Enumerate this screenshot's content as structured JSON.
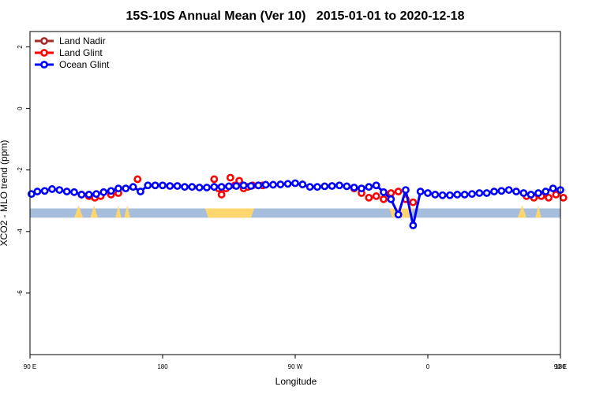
{
  "chart_data": {
    "type": "line",
    "title": "15S-10S Annual Mean (Ver 10)   2015-01-01 to 2020-12-18",
    "xlabel": "Longitude",
    "ylabel": "XCO2 - MLO trend (ppm)",
    "xlim": [
      90,
      450
    ],
    "ylim": [
      -8,
      2.5
    ],
    "x_ticks": [
      90,
      180,
      270,
      360,
      450
    ],
    "x_tick_labels": [
      "90 E",
      "180",
      "90 W",
      "0",
      "90 E",
      "180"
    ],
    "x_tick_values": [
      90,
      180,
      270,
      360,
      450,
      540
    ],
    "y_ticks": [
      2,
      0,
      -2,
      -4,
      -6
    ],
    "y_tick_labels": [
      "2",
      "0",
      "-2",
      "-4",
      "-6"
    ],
    "legend_position": "top-left",
    "series": [
      {
        "name": "Land Nadir",
        "color": "#a52a2a",
        "x": [],
        "y": []
      },
      {
        "name": "Land Glint",
        "color": "#ff0000",
        "x": [
          125,
          130,
          134,
          138,
          145,
          150,
          163,
          215,
          218,
          220,
          223,
          226,
          229,
          232,
          235,
          238,
          241,
          245,
          248,
          310,
          315,
          320,
          325,
          330,
          335,
          340,
          345,
          350,
          427,
          432,
          437,
          442,
          447,
          452
        ],
        "y": [
          -2.8,
          -2.85,
          -2.9,
          -2.85,
          -2.8,
          -2.75,
          -2.3,
          -2.3,
          -2.6,
          -2.8,
          -2.6,
          -2.25,
          -2.5,
          -2.35,
          -2.6,
          -2.55,
          -2.5,
          -2.5,
          -2.5,
          -2.6,
          -2.75,
          -2.9,
          -2.85,
          -2.95,
          -2.75,
          -2.7,
          -2.95,
          -3.05,
          -2.85,
          -2.9,
          -2.85,
          -2.9,
          -2.8,
          -2.9
        ],
        "line": false
      },
      {
        "name": "Ocean Glint",
        "color": "#0000ff",
        "x": [
          91,
          95,
          100,
          105,
          110,
          115,
          120,
          125,
          130,
          135,
          140,
          145,
          150,
          155,
          160,
          165,
          170,
          175,
          180,
          185,
          190,
          195,
          200,
          205,
          210,
          215,
          220,
          225,
          230,
          235,
          240,
          245,
          250,
          255,
          260,
          265,
          270,
          275,
          280,
          285,
          290,
          295,
          300,
          305,
          310,
          315,
          320,
          325,
          330,
          335,
          340,
          345,
          350,
          355,
          360,
          365,
          370,
          375,
          380,
          385,
          390,
          395,
          400,
          405,
          410,
          415,
          420,
          425,
          430,
          435,
          440,
          445,
          450
        ],
        "y": [
          -2.78,
          -2.7,
          -2.68,
          -2.62,
          -2.65,
          -2.7,
          -2.72,
          -2.8,
          -2.8,
          -2.78,
          -2.72,
          -2.68,
          -2.6,
          -2.6,
          -2.55,
          -2.7,
          -2.5,
          -2.5,
          -2.5,
          -2.52,
          -2.52,
          -2.55,
          -2.55,
          -2.57,
          -2.57,
          -2.55,
          -2.55,
          -2.53,
          -2.52,
          -2.5,
          -2.52,
          -2.5,
          -2.48,
          -2.48,
          -2.47,
          -2.45,
          -2.43,
          -2.47,
          -2.55,
          -2.55,
          -2.53,
          -2.52,
          -2.5,
          -2.53,
          -2.57,
          -2.6,
          -2.55,
          -2.5,
          -2.72,
          -2.95,
          -3.45,
          -2.65,
          -3.8,
          -2.7,
          -2.75,
          -2.8,
          -2.82,
          -2.82,
          -2.8,
          -2.8,
          -2.78,
          -2.75,
          -2.75,
          -2.7,
          -2.68,
          -2.65,
          -2.7,
          -2.75,
          -2.8,
          -2.75,
          -2.7,
          -2.6,
          -2.65
        ],
        "line": true
      }
    ],
    "land_mask_colors": {
      "ocean": "#a6bddb",
      "land": "#fdd76e"
    }
  }
}
